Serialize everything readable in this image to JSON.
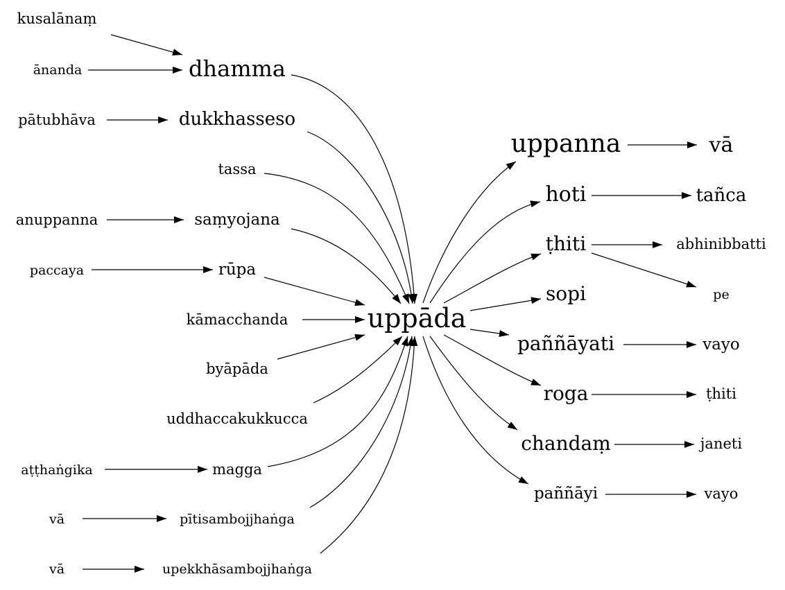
{
  "diagram": {
    "nodes": [
      {
        "id": "kusalanam",
        "label": "kusalānaṃ"
      },
      {
        "id": "ananda",
        "label": "ānanda"
      },
      {
        "id": "dhamma",
        "label": "dhamma"
      },
      {
        "id": "patubhava",
        "label": "pātubhāva"
      },
      {
        "id": "dukkhasseso",
        "label": "dukkhasseso"
      },
      {
        "id": "tassa",
        "label": "tassa"
      },
      {
        "id": "anuppanna",
        "label": "anuppanna"
      },
      {
        "id": "samyojana",
        "label": "saṃyojana"
      },
      {
        "id": "paccaya",
        "label": "paccaya"
      },
      {
        "id": "rupa",
        "label": "rūpa"
      },
      {
        "id": "kamacchanda",
        "label": "kāmacchanda"
      },
      {
        "id": "byapada",
        "label": "byāpāda"
      },
      {
        "id": "uddhacca",
        "label": "uddhaccakukkucca"
      },
      {
        "id": "atthangika",
        "label": "aṭṭhaṅgika"
      },
      {
        "id": "magga",
        "label": "magga"
      },
      {
        "id": "va1",
        "label": "vā"
      },
      {
        "id": "piti",
        "label": "pītisambojjhaṅga"
      },
      {
        "id": "va2",
        "label": "vā"
      },
      {
        "id": "upekkha",
        "label": "upekkhāsambojjhaṅga"
      },
      {
        "id": "uppada",
        "label": "uppāda"
      },
      {
        "id": "uppanna",
        "label": "uppanna"
      },
      {
        "id": "va_r",
        "label": "vā"
      },
      {
        "id": "hoti",
        "label": "hoti"
      },
      {
        "id": "tanca",
        "label": "tañca"
      },
      {
        "id": "thiti",
        "label": "ṭhiti"
      },
      {
        "id": "abhinibbatti",
        "label": "abhinibbatti"
      },
      {
        "id": "pe",
        "label": "pe"
      },
      {
        "id": "sopi",
        "label": "sopi"
      },
      {
        "id": "pannayati",
        "label": "paññāyati"
      },
      {
        "id": "vayo1",
        "label": "vayo"
      },
      {
        "id": "roga",
        "label": "roga"
      },
      {
        "id": "thiti2",
        "label": "ṭhiti"
      },
      {
        "id": "chandam",
        "label": "chandaṃ"
      },
      {
        "id": "janeti",
        "label": "janeti"
      },
      {
        "id": "pannayi",
        "label": "paññāyi"
      },
      {
        "id": "vayo2",
        "label": "vayo"
      }
    ],
    "edges": [
      {
        "from": "kusalanam",
        "to": "dhamma"
      },
      {
        "from": "ananda",
        "to": "dhamma"
      },
      {
        "from": "patubhava",
        "to": "dukkhasseso"
      },
      {
        "from": "anuppanna",
        "to": "samyojana"
      },
      {
        "from": "paccaya",
        "to": "rupa"
      },
      {
        "from": "atthangika",
        "to": "magga"
      },
      {
        "from": "va1",
        "to": "piti"
      },
      {
        "from": "va2",
        "to": "upekkha"
      },
      {
        "from": "dhamma",
        "to": "uppada"
      },
      {
        "from": "dukkhasseso",
        "to": "uppada"
      },
      {
        "from": "tassa",
        "to": "uppada"
      },
      {
        "from": "samyojana",
        "to": "uppada"
      },
      {
        "from": "rupa",
        "to": "uppada"
      },
      {
        "from": "kamacchanda",
        "to": "uppada"
      },
      {
        "from": "byapada",
        "to": "uppada"
      },
      {
        "from": "uddhacca",
        "to": "uppada"
      },
      {
        "from": "magga",
        "to": "uppada"
      },
      {
        "from": "piti",
        "to": "uppada"
      },
      {
        "from": "upekkha",
        "to": "uppada"
      },
      {
        "from": "uppada",
        "to": "uppanna"
      },
      {
        "from": "uppada",
        "to": "hoti"
      },
      {
        "from": "uppada",
        "to": "thiti"
      },
      {
        "from": "uppada",
        "to": "sopi"
      },
      {
        "from": "uppada",
        "to": "pannayati"
      },
      {
        "from": "uppada",
        "to": "roga"
      },
      {
        "from": "uppada",
        "to": "chandam"
      },
      {
        "from": "uppada",
        "to": "pannayi"
      },
      {
        "from": "uppanna",
        "to": "va_r"
      },
      {
        "from": "hoti",
        "to": "tanca"
      },
      {
        "from": "thiti",
        "to": "abhinibbatti"
      },
      {
        "from": "thiti",
        "to": "pe"
      },
      {
        "from": "pannayati",
        "to": "vayo1"
      },
      {
        "from": "roga",
        "to": "thiti2"
      },
      {
        "from": "chandam",
        "to": "janeti"
      },
      {
        "from": "pannayi",
        "to": "vayo2"
      }
    ]
  }
}
